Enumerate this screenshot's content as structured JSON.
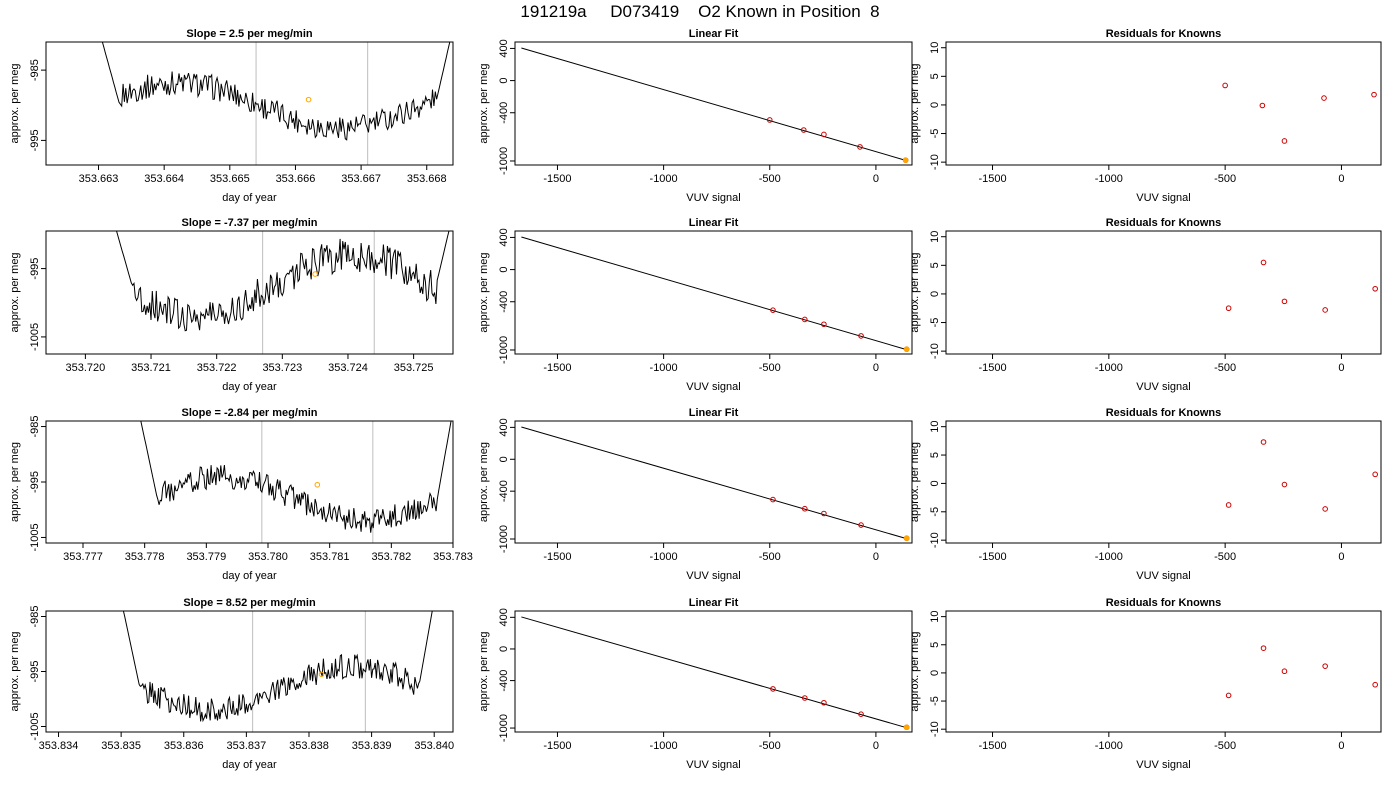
{
  "figure_title": "191219a     D073419    O2 Known in Position  8",
  "colors": {
    "trace": "#000000",
    "marker": "#FFA500",
    "residual": "#CC0000",
    "vline": "#BEBEBE",
    "frame": "#000000"
  },
  "chart_data": [
    {
      "type": "line",
      "row": 1,
      "title": "Slope =  2.5  per meg/min",
      "xlabel": "day of year",
      "ylabel": "approx. per meg",
      "xlim": [
        353.6622,
        353.6684
      ],
      "ylim": [
        -998.5,
        -981.0
      ],
      "xticks": [
        353.663,
        353.664,
        353.665,
        353.666,
        353.667,
        353.668
      ],
      "xtick_labels": [
        "353.663",
        "353.664",
        "353.665",
        "353.666",
        "353.667",
        "353.668"
      ],
      "yticks": [
        -985,
        -995
      ],
      "ytick_labels": [
        "-985",
        "-995"
      ],
      "vlines": [
        353.6654,
        353.6671
      ],
      "marker_point": [
        353.6662,
        -989.2
      ],
      "trace": {
        "start": 353.663,
        "end": 353.6684,
        "base": -990.0,
        "amp": 3.2,
        "edge_low": -999.5,
        "edge_high": -979.0
      }
    },
    {
      "type": "scatter",
      "row": 1,
      "title": "Linear Fit",
      "xlabel": "VUV signal",
      "ylabel": "approx. per meg",
      "xlim": [
        -1700,
        170
      ],
      "ylim": [
        -1050,
        480
      ],
      "xticks": [
        -1500,
        -1000,
        -500,
        0
      ],
      "xtick_labels": [
        "-1500",
        "-1000",
        "-500",
        "0"
      ],
      "yticks": [
        400,
        0,
        -400,
        -1000
      ],
      "ytick_labels": [
        "400",
        "0",
        "-400",
        "-1000"
      ],
      "x": [
        -500,
        -340,
        -245,
        -75,
        140
      ],
      "y": [
        -490,
        -615,
        -670,
        -825,
        -990
      ],
      "fit_line": {
        "x": [
          -1670,
          150
        ],
        "y": [
          405,
          -1000
        ]
      },
      "known_point": [
        140,
        -990
      ]
    },
    {
      "type": "scatter",
      "row": 1,
      "title": "Residuals for Knowns",
      "xlabel": "VUV signal",
      "ylabel": "approx. per meg",
      "xlim": [
        -1700,
        170
      ],
      "ylim": [
        -10.5,
        11
      ],
      "xticks": [
        -1500,
        -1000,
        -500,
        0
      ],
      "xtick_labels": [
        "-1500",
        "-1000",
        "-500",
        "0"
      ],
      "yticks": [
        10,
        5,
        0,
        -5,
        -10
      ],
      "ytick_labels": [
        "10",
        "5",
        "0",
        "-5",
        "-10"
      ],
      "x": [
        -500,
        -340,
        -245,
        -75,
        140
      ],
      "y": [
        3.4,
        -0.1,
        -6.3,
        1.2,
        1.8
      ]
    },
    {
      "type": "line",
      "row": 2,
      "title": "Slope =  -7.37  per meg/min",
      "xlabel": "day of year",
      "ylabel": "approx. per meg",
      "xlim": [
        353.7194,
        353.7256
      ],
      "ylim": [
        -1007.5,
        -989.5
      ],
      "xticks": [
        353.72,
        353.721,
        353.722,
        353.723,
        353.724,
        353.725
      ],
      "xtick_labels": [
        "353.720",
        "353.721",
        "353.722",
        "353.723",
        "353.724",
        "353.725"
      ],
      "yticks": [
        -995,
        -1005
      ],
      "ytick_labels": [
        "-995",
        "-1005"
      ],
      "vlines": [
        353.7227,
        353.7244
      ],
      "marker_point": [
        353.7235,
        -995.8
      ],
      "trace": {
        "start": 353.7204,
        "end": 353.7256,
        "base": -997.5,
        "amp": 4.5,
        "edge_low": -1009.0,
        "edge_high": -987.0
      }
    },
    {
      "type": "scatter",
      "row": 2,
      "title": "Linear Fit",
      "xlabel": "VUV signal",
      "ylabel": "approx. per meg",
      "xlim": [
        -1700,
        170
      ],
      "ylim": [
        -1050,
        480
      ],
      "xticks": [
        -1500,
        -1000,
        -500,
        0
      ],
      "xtick_labels": [
        "-1500",
        "-1000",
        "-500",
        "0"
      ],
      "yticks": [
        400,
        0,
        -400,
        -1000
      ],
      "ytick_labels": [
        "400",
        "0",
        "-400",
        "-1000"
      ],
      "x": [
        -485,
        -335,
        -245,
        -70,
        145
      ],
      "y": [
        -505,
        -620,
        -680,
        -825,
        -990
      ],
      "fit_line": {
        "x": [
          -1670,
          150
        ],
        "y": [
          405,
          -1000
        ]
      },
      "known_point": [
        145,
        -990
      ]
    },
    {
      "type": "scatter",
      "row": 2,
      "title": "Residuals for Knowns",
      "xlabel": "VUV signal",
      "ylabel": "approx. per meg",
      "xlim": [
        -1700,
        170
      ],
      "ylim": [
        -10.5,
        11
      ],
      "xticks": [
        -1500,
        -1000,
        -500,
        0
      ],
      "xtick_labels": [
        "-1500",
        "-1000",
        "-500",
        "0"
      ],
      "yticks": [
        10,
        5,
        0,
        -5,
        -10
      ],
      "ytick_labels": [
        "10",
        "5",
        "0",
        "-5",
        "-10"
      ],
      "x": [
        -485,
        -335,
        -245,
        -70,
        145
      ],
      "y": [
        -2.5,
        5.5,
        -1.3,
        -2.8,
        0.9
      ]
    },
    {
      "type": "line",
      "row": 3,
      "title": "Slope =  -2.84  per meg/min",
      "xlabel": "day of year",
      "ylabel": "approx. per meg",
      "xlim": [
        353.7764,
        353.783
      ],
      "ylim": [
        -1006.0,
        -984.0
      ],
      "xticks": [
        353.777,
        353.778,
        353.779,
        353.78,
        353.781,
        353.782,
        353.783
      ],
      "xtick_labels": [
        "353.777",
        "353.778",
        "353.779",
        "353.780",
        "353.781",
        "353.782",
        "353.783"
      ],
      "yticks": [
        -985,
        -995,
        -1005
      ],
      "ytick_labels": [
        "-985",
        "-995",
        "-1005"
      ],
      "vlines": [
        353.7799,
        353.7817
      ],
      "marker_point": [
        353.7808,
        -995.5
      ],
      "trace": {
        "start": 353.7779,
        "end": 353.783,
        "base": -998.0,
        "amp": 4.0,
        "edge_low": -1008.0,
        "edge_high": -982.0
      }
    },
    {
      "type": "scatter",
      "row": 3,
      "title": "Linear Fit",
      "xlabel": "VUV signal",
      "ylabel": "approx. per meg",
      "xlim": [
        -1700,
        170
      ],
      "ylim": [
        -1050,
        480
      ],
      "xticks": [
        -1500,
        -1000,
        -500,
        0
      ],
      "xtick_labels": [
        "-1500",
        "-1000",
        "-500",
        "0"
      ],
      "yticks": [
        400,
        0,
        -400,
        -1000
      ],
      "ytick_labels": [
        "400",
        "0",
        "-400",
        "-1000"
      ],
      "x": [
        -485,
        -335,
        -245,
        -70,
        145
      ],
      "y": [
        -505,
        -620,
        -680,
        -825,
        -990
      ],
      "fit_line": {
        "x": [
          -1670,
          150
        ],
        "y": [
          405,
          -1000
        ]
      },
      "known_point": [
        145,
        -990
      ]
    },
    {
      "type": "scatter",
      "row": 3,
      "title": "Residuals for Knowns",
      "xlabel": "VUV signal",
      "ylabel": "approx. per meg",
      "xlim": [
        -1700,
        170
      ],
      "ylim": [
        -10.5,
        11
      ],
      "xticks": [
        -1500,
        -1000,
        -500,
        0
      ],
      "xtick_labels": [
        "-1500",
        "-1000",
        "-500",
        "0"
      ],
      "yticks": [
        10,
        5,
        0,
        -5,
        -10
      ],
      "ytick_labels": [
        "10",
        "5",
        "0",
        "-5",
        "-10"
      ],
      "x": [
        -485,
        -335,
        -245,
        -70,
        145
      ],
      "y": [
        -3.8,
        7.3,
        -0.2,
        -4.5,
        1.6
      ]
    },
    {
      "type": "line",
      "row": 4,
      "title": "Slope =  8.52  per meg/min",
      "xlabel": "day of year",
      "ylabel": "approx. per meg",
      "xlim": [
        353.8338,
        353.8403
      ],
      "ylim": [
        -1006.0,
        -984.0
      ],
      "xticks": [
        353.834,
        353.835,
        353.836,
        353.837,
        353.838,
        353.839,
        353.84
      ],
      "xtick_labels": [
        "353.834",
        "353.835",
        "353.836",
        "353.837",
        "353.838",
        "353.839",
        "353.840"
      ],
      "yticks": [
        -985,
        -995,
        -1005
      ],
      "ytick_labels": [
        "-985",
        "-995",
        "-1005"
      ],
      "vlines": [
        353.8371,
        353.8389
      ],
      "marker_point": [
        353.8382,
        -995.5
      ],
      "trace": {
        "start": 353.835,
        "end": 353.84,
        "base": -998.0,
        "amp": 4.0,
        "edge_low": -1008.0,
        "edge_high": -982.0
      }
    },
    {
      "type": "scatter",
      "row": 4,
      "title": "Linear Fit",
      "xlabel": "VUV signal",
      "ylabel": "approx. per meg",
      "xlim": [
        -1700,
        170
      ],
      "ylim": [
        -1050,
        480
      ],
      "xticks": [
        -1500,
        -1000,
        -500,
        0
      ],
      "xtick_labels": [
        "-1500",
        "-1000",
        "-500",
        "0"
      ],
      "yticks": [
        400,
        0,
        -400,
        -1000
      ],
      "ytick_labels": [
        "400",
        "0",
        "-400",
        "-1000"
      ],
      "x": [
        -485,
        -335,
        -245,
        -70,
        145
      ],
      "y": [
        -505,
        -620,
        -680,
        -825,
        -990
      ],
      "fit_line": {
        "x": [
          -1670,
          150
        ],
        "y": [
          405,
          -1000
        ]
      },
      "known_point": [
        145,
        -990
      ]
    },
    {
      "type": "scatter",
      "row": 4,
      "title": "Residuals for Knowns",
      "xlabel": "VUV signal",
      "ylabel": "approx. per meg",
      "xlim": [
        -1700,
        170
      ],
      "ylim": [
        -10.5,
        11
      ],
      "xticks": [
        -1500,
        -1000,
        -500,
        0
      ],
      "xtick_labels": [
        "-1500",
        "-1000",
        "-500",
        "0"
      ],
      "yticks": [
        10,
        5,
        0,
        -5,
        -10
      ],
      "ytick_labels": [
        "10",
        "5",
        "0",
        "-5",
        "-10"
      ],
      "x": [
        -485,
        -335,
        -245,
        -70,
        145
      ],
      "y": [
        -4.0,
        4.4,
        0.3,
        1.2,
        -2.1
      ]
    }
  ]
}
